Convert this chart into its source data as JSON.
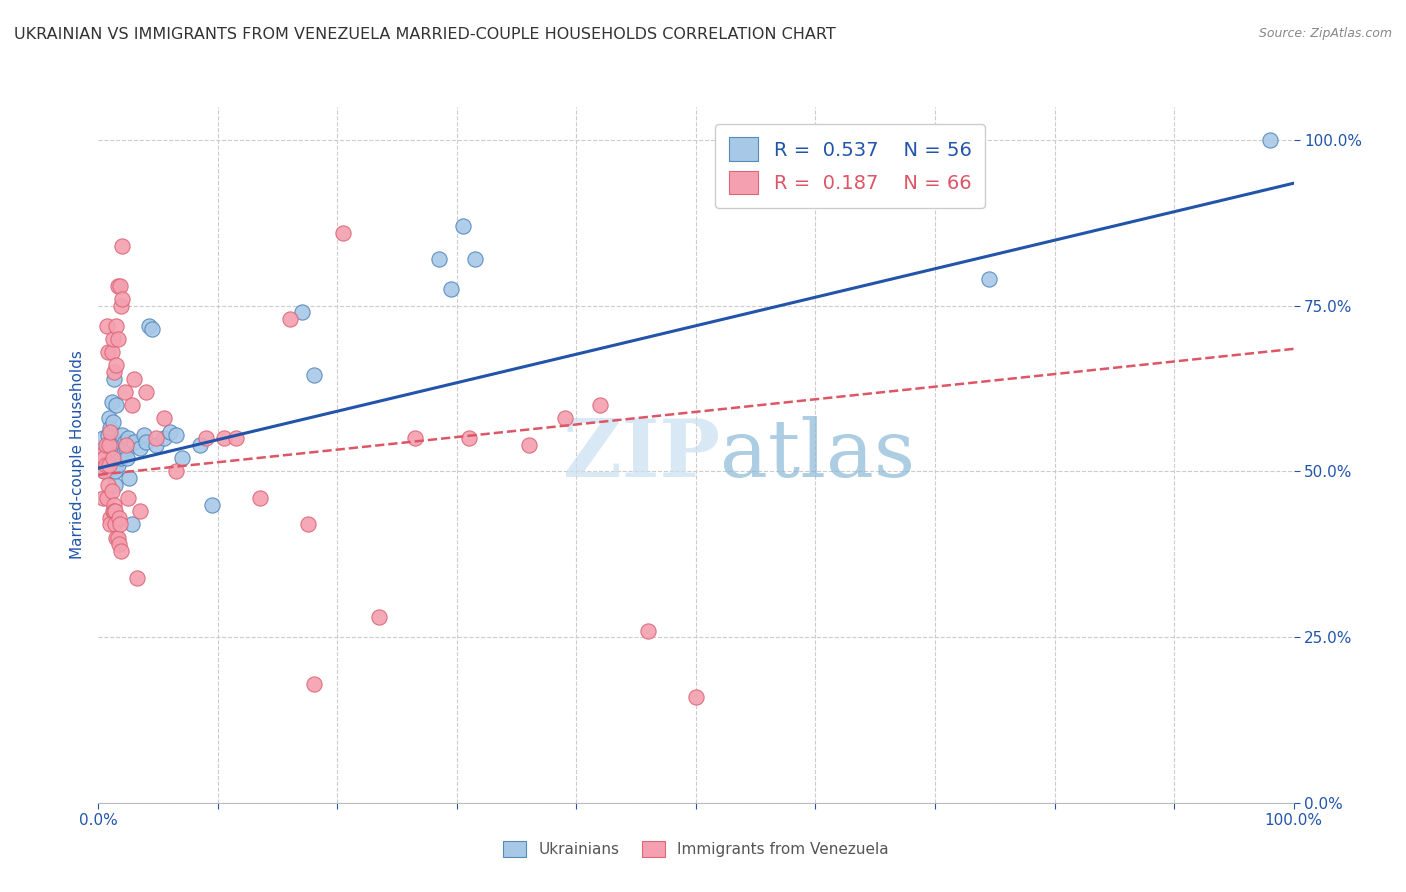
{
  "title": "UKRAINIAN VS IMMIGRANTS FROM VENEZUELA MARRIED-COUPLE HOUSEHOLDS CORRELATION CHART",
  "source": "Source: ZipAtlas.com",
  "ylabel": "Married-couple Households",
  "xlabel": "",
  "xlim": [
    0,
    1
  ],
  "ylim": [
    0,
    1.05
  ],
  "plot_ylim": [
    0,
    1.05
  ],
  "x_ticks": [
    0.0,
    0.5,
    1.0
  ],
  "x_tick_labels": [
    "0.0%",
    "",
    "100.0%"
  ],
  "y_tick_labels_right": [
    "0.0%",
    "25.0%",
    "50.0%",
    "75.0%",
    "100.0%"
  ],
  "y_ticks_right": [
    0.0,
    0.25,
    0.5,
    0.75,
    1.0
  ],
  "watermark": "ZIPatlas",
  "legend_r1": "R = 0.537",
  "legend_n1": "N = 56",
  "legend_r2": "R = 0.187",
  "legend_n2": "N = 66",
  "blue_color": "#a8c8e8",
  "pink_color": "#f4a0b0",
  "blue_edge_color": "#5588bb",
  "pink_edge_color": "#dd6677",
  "blue_line_color": "#2255aa",
  "pink_line_color": "#dd5566",
  "title_color": "#333333",
  "axis_color": "#2255aa",
  "grid_color": "#cccccc",
  "bg_color": "#ffffff",
  "title_fontsize": 11.5,
  "source_fontsize": 9,
  "blue_scatter": [
    [
      0.003,
      0.52
    ],
    [
      0.004,
      0.55
    ],
    [
      0.005,
      0.5
    ],
    [
      0.006,
      0.535
    ],
    [
      0.007,
      0.51
    ],
    [
      0.007,
      0.54
    ],
    [
      0.008,
      0.52
    ],
    [
      0.008,
      0.555
    ],
    [
      0.009,
      0.5
    ],
    [
      0.009,
      0.58
    ],
    [
      0.01,
      0.535
    ],
    [
      0.01,
      0.565
    ],
    [
      0.011,
      0.605
    ],
    [
      0.011,
      0.53
    ],
    [
      0.012,
      0.515
    ],
    [
      0.012,
      0.575
    ],
    [
      0.013,
      0.64
    ],
    [
      0.013,
      0.5
    ],
    [
      0.014,
      0.48
    ],
    [
      0.014,
      0.5
    ],
    [
      0.015,
      0.525
    ],
    [
      0.015,
      0.6
    ],
    [
      0.016,
      0.53
    ],
    [
      0.016,
      0.51
    ],
    [
      0.017,
      0.545
    ],
    [
      0.018,
      0.54
    ],
    [
      0.019,
      0.52
    ],
    [
      0.02,
      0.555
    ],
    [
      0.021,
      0.53
    ],
    [
      0.022,
      0.545
    ],
    [
      0.023,
      0.535
    ],
    [
      0.024,
      0.52
    ],
    [
      0.025,
      0.55
    ],
    [
      0.026,
      0.49
    ],
    [
      0.028,
      0.42
    ],
    [
      0.03,
      0.545
    ],
    [
      0.035,
      0.535
    ],
    [
      0.038,
      0.555
    ],
    [
      0.04,
      0.545
    ],
    [
      0.042,
      0.72
    ],
    [
      0.045,
      0.715
    ],
    [
      0.048,
      0.54
    ],
    [
      0.055,
      0.55
    ],
    [
      0.06,
      0.56
    ],
    [
      0.065,
      0.555
    ],
    [
      0.07,
      0.52
    ],
    [
      0.085,
      0.54
    ],
    [
      0.095,
      0.45
    ],
    [
      0.17,
      0.74
    ],
    [
      0.18,
      0.645
    ],
    [
      0.285,
      0.82
    ],
    [
      0.295,
      0.775
    ],
    [
      0.305,
      0.87
    ],
    [
      0.315,
      0.82
    ],
    [
      0.745,
      0.79
    ],
    [
      0.98,
      1.0
    ]
  ],
  "pink_scatter": [
    [
      0.003,
      0.525
    ],
    [
      0.004,
      0.46
    ],
    [
      0.005,
      0.5
    ],
    [
      0.005,
      0.52
    ],
    [
      0.006,
      0.54
    ],
    [
      0.006,
      0.51
    ],
    [
      0.007,
      0.46
    ],
    [
      0.007,
      0.72
    ],
    [
      0.008,
      0.68
    ],
    [
      0.008,
      0.48
    ],
    [
      0.009,
      0.51
    ],
    [
      0.009,
      0.54
    ],
    [
      0.01,
      0.56
    ],
    [
      0.01,
      0.43
    ],
    [
      0.01,
      0.42
    ],
    [
      0.011,
      0.47
    ],
    [
      0.011,
      0.68
    ],
    [
      0.012,
      0.52
    ],
    [
      0.012,
      0.7
    ],
    [
      0.012,
      0.44
    ],
    [
      0.013,
      0.65
    ],
    [
      0.013,
      0.45
    ],
    [
      0.013,
      0.44
    ],
    [
      0.014,
      0.44
    ],
    [
      0.014,
      0.42
    ],
    [
      0.015,
      0.4
    ],
    [
      0.015,
      0.72
    ],
    [
      0.015,
      0.66
    ],
    [
      0.016,
      0.7
    ],
    [
      0.016,
      0.78
    ],
    [
      0.016,
      0.4
    ],
    [
      0.017,
      0.43
    ],
    [
      0.017,
      0.39
    ],
    [
      0.018,
      0.42
    ],
    [
      0.018,
      0.78
    ],
    [
      0.019,
      0.75
    ],
    [
      0.019,
      0.38
    ],
    [
      0.02,
      0.84
    ],
    [
      0.02,
      0.76
    ],
    [
      0.022,
      0.62
    ],
    [
      0.023,
      0.54
    ],
    [
      0.025,
      0.46
    ],
    [
      0.028,
      0.6
    ],
    [
      0.03,
      0.64
    ],
    [
      0.032,
      0.34
    ],
    [
      0.035,
      0.44
    ],
    [
      0.04,
      0.62
    ],
    [
      0.048,
      0.55
    ],
    [
      0.055,
      0.58
    ],
    [
      0.065,
      0.5
    ],
    [
      0.09,
      0.55
    ],
    [
      0.105,
      0.55
    ],
    [
      0.115,
      0.55
    ],
    [
      0.135,
      0.46
    ],
    [
      0.16,
      0.73
    ],
    [
      0.175,
      0.42
    ],
    [
      0.18,
      0.18
    ],
    [
      0.205,
      0.86
    ],
    [
      0.235,
      0.28
    ],
    [
      0.265,
      0.55
    ],
    [
      0.31,
      0.55
    ],
    [
      0.36,
      0.54
    ],
    [
      0.39,
      0.58
    ],
    [
      0.42,
      0.6
    ],
    [
      0.46,
      0.26
    ],
    [
      0.5,
      0.16
    ]
  ],
  "blue_line_x": [
    0.0,
    1.0
  ],
  "blue_line_y": [
    0.505,
    0.935
  ],
  "pink_line_x": [
    0.0,
    1.0
  ],
  "pink_line_y": [
    0.495,
    0.685
  ]
}
